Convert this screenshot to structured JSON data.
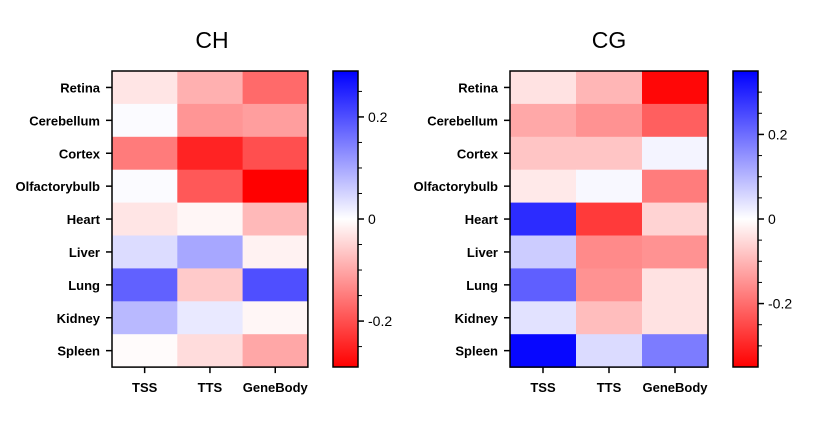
{
  "chart_data": [
    {
      "type": "heatmap",
      "title": "CH",
      "rows": [
        "Retina",
        "Cerebellum",
        "Cortex",
        "Olfactorybulb",
        "Heart",
        "Liver",
        "Lung",
        "Kidney",
        "Spleen"
      ],
      "columns": [
        "TSS",
        "TTS",
        "GeneBody"
      ],
      "values": [
        [
          -0.03,
          -0.09,
          -0.17
        ],
        [
          0.005,
          -0.12,
          -0.11
        ],
        [
          -0.15,
          -0.25,
          -0.2
        ],
        [
          0.005,
          -0.19,
          -0.29
        ],
        [
          -0.03,
          -0.01,
          -0.08
        ],
        [
          0.04,
          0.1,
          -0.015
        ],
        [
          0.18,
          -0.06,
          0.2
        ],
        [
          0.08,
          0.025,
          -0.01
        ],
        [
          -0.005,
          -0.04,
          -0.1
        ]
      ],
      "colorbar": {
        "range": [
          -0.29,
          0.29
        ],
        "ticks": [
          0.2,
          0,
          -0.2
        ],
        "tick_labels": [
          "0.2",
          "0",
          "-0.2"
        ],
        "colormap": [
          "#ff0000",
          "#ffffff",
          "#0000ff"
        ]
      }
    },
    {
      "type": "heatmap",
      "title": "CG",
      "rows": [
        "Retina",
        "Cerebellum",
        "Cortex",
        "Olfactorybulb",
        "Heart",
        "Liver",
        "Lung",
        "Kidney",
        "Spleen"
      ],
      "columns": [
        "TSS",
        "TTS",
        "GeneBody"
      ],
      "values": [
        [
          -0.04,
          -0.1,
          -0.34
        ],
        [
          -0.12,
          -0.15,
          -0.22
        ],
        [
          -0.08,
          -0.08,
          0.015
        ],
        [
          -0.03,
          0.01,
          -0.18
        ],
        [
          0.29,
          -0.27,
          -0.06
        ],
        [
          0.07,
          -0.16,
          -0.15
        ],
        [
          0.22,
          -0.15,
          -0.04
        ],
        [
          0.04,
          -0.09,
          -0.04
        ],
        [
          0.34,
          0.05,
          0.18
        ]
      ],
      "colorbar": {
        "range": [
          -0.35,
          0.35
        ],
        "ticks": [
          0.2,
          0,
          -0.2
        ],
        "tick_labels": [
          "0.2",
          "0",
          "-0.2"
        ],
        "colormap": [
          "#ff0000",
          "#ffffff",
          "#0000ff"
        ]
      }
    }
  ]
}
